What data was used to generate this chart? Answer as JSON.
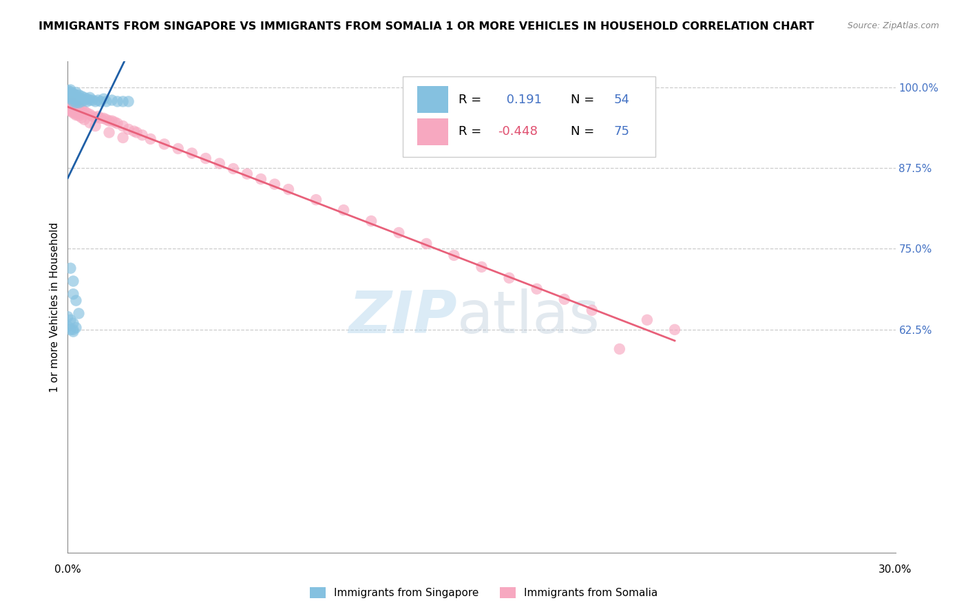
{
  "title": "IMMIGRANTS FROM SINGAPORE VS IMMIGRANTS FROM SOMALIA 1 OR MORE VEHICLES IN HOUSEHOLD CORRELATION CHART",
  "source": "Source: ZipAtlas.com",
  "ylabel": "1 or more Vehicles in Household",
  "right_ytick_vals": [
    1.0,
    0.875,
    0.75,
    0.625
  ],
  "right_ytick_labels": [
    "100.0%",
    "87.5%",
    "75.0%",
    "62.5%"
  ],
  "xlim": [
    0.0,
    0.3
  ],
  "ylim": [
    0.28,
    1.04
  ],
  "singapore_color": "#85c1e0",
  "somalia_color": "#f7a8c0",
  "singapore_line_color": "#1f5fa6",
  "somalia_line_color": "#e8607a",
  "R_singapore": 0.191,
  "N_singapore": 54,
  "R_somalia": -0.448,
  "N_somalia": 75,
  "watermark_zip": "ZIP",
  "watermark_atlas": "atlas",
  "legend_singapore": "Immigrants from Singapore",
  "legend_somalia": "Immigrants from Somalia",
  "legend_color_blue": "#4472c4",
  "legend_color_pink": "#e05070",
  "background_color": "#ffffff",
  "grid_color": "#cccccc",
  "title_fontsize": 11.5,
  "source_fontsize": 9,
  "sg_x": [
    0.0,
    0.0,
    0.0,
    0.0,
    0.001,
    0.001,
    0.001,
    0.001,
    0.001,
    0.002,
    0.002,
    0.002,
    0.002,
    0.003,
    0.003,
    0.003,
    0.003,
    0.003,
    0.004,
    0.004,
    0.004,
    0.004,
    0.005,
    0.005,
    0.005,
    0.006,
    0.006,
    0.007,
    0.007,
    0.008,
    0.008,
    0.009,
    0.01,
    0.011,
    0.012,
    0.013,
    0.014,
    0.016,
    0.018,
    0.02,
    0.022,
    0.001,
    0.002,
    0.002,
    0.003,
    0.004,
    0.0,
    0.0,
    0.001,
    0.002,
    0.002,
    0.003,
    0.001,
    0.002
  ],
  "sg_y": [
    0.995,
    0.992,
    0.988,
    0.985,
    0.996,
    0.993,
    0.989,
    0.985,
    0.982,
    0.99,
    0.986,
    0.982,
    0.978,
    0.992,
    0.988,
    0.984,
    0.98,
    0.976,
    0.988,
    0.984,
    0.98,
    0.976,
    0.986,
    0.982,
    0.978,
    0.984,
    0.98,
    0.982,
    0.978,
    0.984,
    0.98,
    0.98,
    0.978,
    0.98,
    0.978,
    0.982,
    0.978,
    0.98,
    0.978,
    0.978,
    0.978,
    0.72,
    0.7,
    0.68,
    0.67,
    0.65,
    0.645,
    0.63,
    0.64,
    0.635,
    0.625,
    0.628,
    0.625,
    0.622
  ],
  "so_x": [
    0.0,
    0.0,
    0.0,
    0.001,
    0.001,
    0.001,
    0.001,
    0.002,
    0.002,
    0.002,
    0.002,
    0.003,
    0.003,
    0.003,
    0.003,
    0.004,
    0.004,
    0.004,
    0.005,
    0.005,
    0.006,
    0.006,
    0.007,
    0.008,
    0.009,
    0.01,
    0.011,
    0.012,
    0.013,
    0.014,
    0.015,
    0.016,
    0.017,
    0.018,
    0.02,
    0.022,
    0.024,
    0.025,
    0.027,
    0.03,
    0.035,
    0.04,
    0.045,
    0.05,
    0.055,
    0.06,
    0.065,
    0.07,
    0.075,
    0.08,
    0.09,
    0.1,
    0.11,
    0.12,
    0.13,
    0.14,
    0.15,
    0.16,
    0.17,
    0.18,
    0.19,
    0.2,
    0.21,
    0.22,
    0.0,
    0.001,
    0.002,
    0.003,
    0.004,
    0.005,
    0.006,
    0.008,
    0.01,
    0.015,
    0.02
  ],
  "so_y": [
    0.975,
    0.97,
    0.965,
    0.978,
    0.973,
    0.968,
    0.963,
    0.975,
    0.97,
    0.965,
    0.96,
    0.972,
    0.967,
    0.962,
    0.957,
    0.97,
    0.965,
    0.96,
    0.967,
    0.962,
    0.963,
    0.958,
    0.96,
    0.958,
    0.955,
    0.953,
    0.955,
    0.952,
    0.952,
    0.95,
    0.948,
    0.948,
    0.946,
    0.944,
    0.94,
    0.935,
    0.932,
    0.93,
    0.926,
    0.92,
    0.912,
    0.905,
    0.898,
    0.89,
    0.882,
    0.874,
    0.866,
    0.858,
    0.85,
    0.842,
    0.826,
    0.81,
    0.793,
    0.775,
    0.758,
    0.74,
    0.722,
    0.705,
    0.688,
    0.672,
    0.655,
    0.595,
    0.64,
    0.625,
    0.968,
    0.965,
    0.962,
    0.959,
    0.956,
    0.953,
    0.95,
    0.945,
    0.94,
    0.93,
    0.922
  ]
}
